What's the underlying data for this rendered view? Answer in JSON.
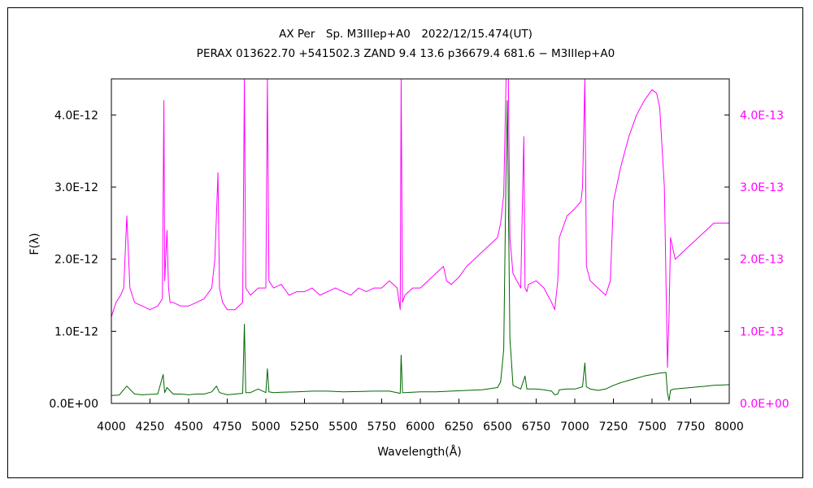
{
  "chart_data": {
    "type": "line",
    "title": "AX Per　Sp. M3IIIep+A0　2022/12/15.474(UT)",
    "subtitle": "PERAX 013622.70 +541502.3 ZAND 9.4 13.6 p36679.4 681.6 − M3IIIep+A0",
    "xlabel": "Wavelength(Å)",
    "ylabel": "F(λ)",
    "xlim": [
      4000,
      8000
    ],
    "ylim_left": [
      0,
      4.5e-12
    ],
    "ylim_right": [
      0,
      4.5e-13
    ],
    "x_ticks": [
      "4000",
      "4250",
      "4500",
      "4750",
      "5000",
      "5250",
      "5500",
      "5750",
      "6000",
      "6250",
      "6500",
      "6750",
      "7000",
      "7250",
      "7500",
      "7750",
      "8000"
    ],
    "y_ticks_left": [
      "0.0E+00",
      "1.0E-12",
      "2.0E-12",
      "3.0E-12",
      "4.0E-12"
    ],
    "y_ticks_right": [
      "0.0E+00",
      "1.0E-13",
      "2.0E-13",
      "3.0E-13",
      "4.0E-13"
    ],
    "grid": false,
    "series": [
      {
        "axis": "left",
        "color": "#006600",
        "x": [
          4000,
          4050,
          4100,
          4150,
          4200,
          4250,
          4300,
          4335,
          4345,
          4360,
          4400,
          4450,
          4500,
          4550,
          4600,
          4650,
          4680,
          4700,
          4750,
          4800,
          4850,
          4861,
          4870,
          4900,
          4950,
          5000,
          5010,
          5020,
          5050,
          5100,
          5200,
          5300,
          5400,
          5500,
          5600,
          5700,
          5800,
          5870,
          5876,
          5885,
          5900,
          6000,
          6100,
          6200,
          6300,
          6400,
          6500,
          6520,
          6540,
          6555,
          6563,
          6570,
          6580,
          6600,
          6650,
          6678,
          6690,
          6700,
          6750,
          6800,
          6850,
          6870,
          6890,
          6900,
          6950,
          7000,
          7050,
          7065,
          7075,
          7100,
          7150,
          7200,
          7250,
          7300,
          7350,
          7400,
          7450,
          7500,
          7550,
          7590,
          7600,
          7610,
          7620,
          7640,
          7650,
          7700,
          7750,
          7800,
          7850,
          7900,
          7950,
          8000
        ],
        "y": [
          1.1e-13,
          1.15e-13,
          2.4e-13,
          1.3e-13,
          1.2e-13,
          1.25e-13,
          1.3e-13,
          4e-13,
          1.5e-13,
          2.2e-13,
          1.3e-13,
          1.3e-13,
          1.2e-13,
          1.3e-13,
          1.3e-13,
          1.6e-13,
          2.4e-13,
          1.5e-13,
          1.2e-13,
          1.3e-13,
          1.4e-13,
          1.1e-12,
          1.5e-13,
          1.5e-13,
          2e-13,
          1.5e-13,
          4.8e-13,
          1.6e-13,
          1.5e-13,
          1.55e-13,
          1.6e-13,
          1.7e-13,
          1.7e-13,
          1.6e-13,
          1.65e-13,
          1.7e-13,
          1.7e-13,
          1.4e-13,
          6.7e-13,
          1.5e-13,
          1.5e-13,
          1.6e-13,
          1.6e-13,
          1.7e-13,
          1.8e-13,
          1.9e-13,
          2.2e-13,
          3e-13,
          7.5e-13,
          3.3e-12,
          4.2e-12,
          2.8e-12,
          9e-13,
          2.5e-13,
          2e-13,
          3.8e-13,
          2e-13,
          2e-13,
          2e-13,
          1.9e-13,
          1.7e-13,
          1.2e-13,
          1.3e-13,
          1.9e-13,
          2e-13,
          2e-13,
          2.3e-13,
          5.6e-13,
          2.3e-13,
          2e-13,
          1.8e-13,
          2e-13,
          2.5e-13,
          2.9e-13,
          3.2e-13,
          3.5e-13,
          3.8e-13,
          4e-13,
          4.2e-13,
          4.3e-13,
          1.5e-13,
          4e-14,
          1.8e-13,
          2e-13,
          2e-13,
          2.1e-13,
          2.2e-13,
          2.3e-13,
          2.4e-13,
          2.5e-13,
          2.55e-13,
          2.6e-13
        ]
      },
      {
        "axis": "right",
        "color": "#ff00ff",
        "x": [
          4000,
          4030,
          4060,
          4080,
          4100,
          4120,
          4150,
          4200,
          4250,
          4300,
          4330,
          4340,
          4345,
          4360,
          4370,
          4380,
          4400,
          4450,
          4500,
          4550,
          4600,
          4650,
          4670,
          4690,
          4700,
          4720,
          4750,
          4800,
          4850,
          4861,
          4870,
          4900,
          4950,
          5000,
          5010,
          5020,
          5050,
          5100,
          5150,
          5200,
          5250,
          5300,
          5350,
          5400,
          5450,
          5500,
          5550,
          5600,
          5650,
          5700,
          5750,
          5800,
          5850,
          5870,
          5876,
          5885,
          5900,
          5950,
          6000,
          6050,
          6100,
          6150,
          6170,
          6200,
          6250,
          6300,
          6350,
          6400,
          6450,
          6500,
          6520,
          6540,
          6555,
          6563,
          6570,
          6580,
          6600,
          6650,
          6670,
          6678,
          6690,
          6700,
          6750,
          6800,
          6850,
          6870,
          6890,
          6900,
          6950,
          7000,
          7040,
          7050,
          7065,
          7075,
          7100,
          7150,
          7200,
          7230,
          7250,
          7300,
          7350,
          7400,
          7450,
          7500,
          7530,
          7550,
          7580,
          7600,
          7610,
          7620,
          7640,
          7650,
          7700,
          7750,
          7800,
          7850,
          7900,
          7950,
          8000
        ],
        "y": [
          1.2e-13,
          1.4e-13,
          1.5e-13,
          1.6e-13,
          2.6e-13,
          1.6e-13,
          1.4e-13,
          1.35e-13,
          1.3e-13,
          1.35e-13,
          1.45e-13,
          4.2e-13,
          1.7e-13,
          2.4e-13,
          1.6e-13,
          1.4e-13,
          1.4e-13,
          1.35e-13,
          1.35e-13,
          1.4e-13,
          1.45e-13,
          1.6e-13,
          2e-13,
          3.2e-13,
          1.6e-13,
          1.4e-13,
          1.3e-13,
          1.3e-13,
          1.4e-13,
          4.5e-13,
          1.6e-13,
          1.5e-13,
          1.6e-13,
          1.6e-13,
          4.5e-13,
          1.7e-13,
          1.6e-13,
          1.65e-13,
          1.5e-13,
          1.55e-13,
          1.55e-13,
          1.6e-13,
          1.5e-13,
          1.55e-13,
          1.6e-13,
          1.55e-13,
          1.5e-13,
          1.6e-13,
          1.55e-13,
          1.6e-13,
          1.6e-13,
          1.7e-13,
          1.6e-13,
          1.3e-13,
          4.5e-13,
          1.4e-13,
          1.5e-13,
          1.6e-13,
          1.6e-13,
          1.7e-13,
          1.8e-13,
          1.9e-13,
          1.7e-13,
          1.65e-13,
          1.75e-13,
          1.9e-13,
          2e-13,
          2.1e-13,
          2.2e-13,
          2.3e-13,
          2.5e-13,
          2.9e-13,
          4.5e-13,
          4.5e-13,
          4.5e-13,
          2.3e-13,
          1.8e-13,
          1.6e-13,
          3.7e-13,
          1.6e-13,
          1.55e-13,
          1.65e-13,
          1.7e-13,
          1.6e-13,
          1.4e-13,
          1.3e-13,
          1.7e-13,
          2.3e-13,
          2.6e-13,
          2.7e-13,
          2.8e-13,
          3e-13,
          4.5e-13,
          1.9e-13,
          1.7e-13,
          1.6e-13,
          1.5e-13,
          1.7e-13,
          2.8e-13,
          3.3e-13,
          3.7e-13,
          4e-13,
          4.2e-13,
          4.35e-13,
          4.3e-13,
          4.1e-13,
          3e-13,
          5e-14,
          1.2e-13,
          2.3e-13,
          2.1e-13,
          2e-13,
          2.1e-13,
          2.2e-13,
          2.3e-13,
          2.4e-13,
          2.5e-13,
          2.5e-13,
          2.5e-13
        ]
      }
    ]
  }
}
